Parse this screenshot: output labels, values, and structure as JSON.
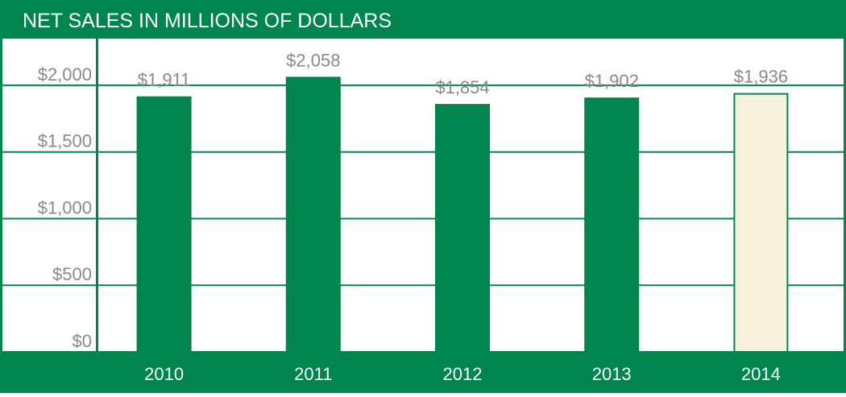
{
  "chart_data": {
    "type": "bar",
    "title": "NET SALES IN MILLIONS OF DOLLARS",
    "categories": [
      "2010",
      "2011",
      "2012",
      "2013",
      "2014"
    ],
    "values": [
      1911,
      2058,
      1854,
      1902,
      1936
    ],
    "value_labels": [
      "$1,911",
      "$2,058",
      "$1,854",
      "$1,902",
      "$1,936"
    ],
    "colors": [
      "#00854f",
      "#00854f",
      "#00854f",
      "#00854f",
      "#f7f1dc"
    ],
    "ylim": [
      0,
      2350
    ],
    "yticks": [
      {
        "value": 0,
        "label": "$0"
      },
      {
        "value": 500,
        "label": "$500"
      },
      {
        "value": 1000,
        "label": "$1,000"
      },
      {
        "value": 1500,
        "label": "$1,500"
      },
      {
        "value": 2000,
        "label": "$2,000"
      }
    ],
    "grid": true
  }
}
